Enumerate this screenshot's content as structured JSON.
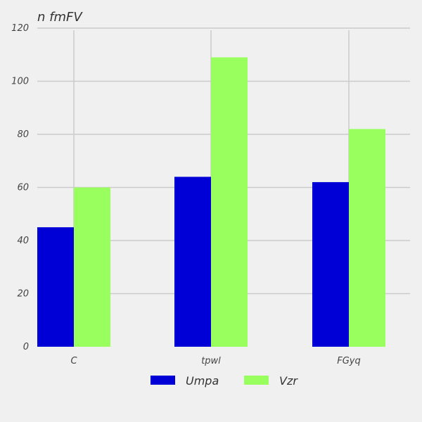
{
  "chart_data": {
    "type": "bar",
    "title": "n fmFV",
    "xlabel": "",
    "ylabel": "",
    "categories": [
      "C",
      "tpwl",
      "FGyq"
    ],
    "series": [
      {
        "name": "Umpa",
        "values": [
          45,
          64,
          62
        ],
        "color": "#0000d6"
      },
      {
        "name": "Vzr",
        "values": [
          60,
          109,
          82
        ],
        "color": "#99ff5f"
      }
    ],
    "ylim": [
      0,
      120
    ],
    "yticks": [
      0,
      20,
      40,
      60,
      80,
      100,
      120
    ],
    "grid": true,
    "legend_position": "bottom-center",
    "colors": {
      "background": "#f0f0f0",
      "grid": "#cbcbcb",
      "text": "#444444"
    }
  }
}
